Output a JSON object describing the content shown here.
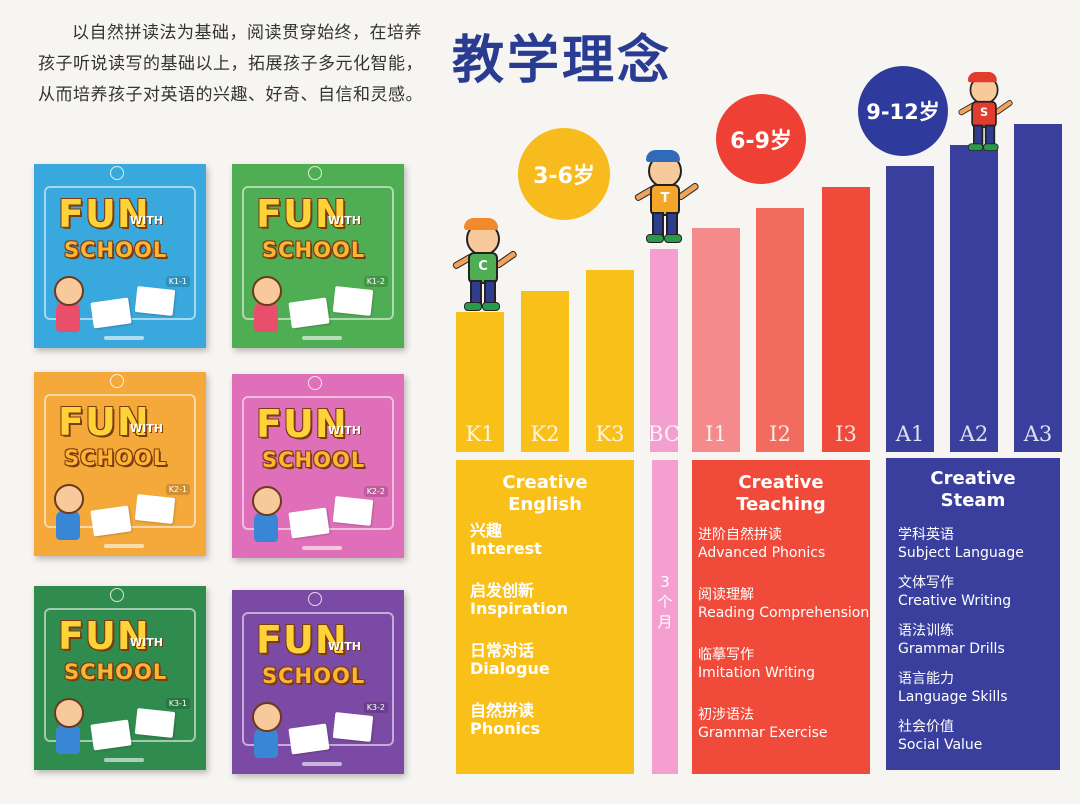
{
  "intro_text": "以自然拼读法为基础，阅读贯穿始终，在培养孩子听说读写的基础以上，拓展孩子多元化智能，从而培养孩子对英语的兴趣、好奇、自信和灵感。",
  "heading": "教学理念",
  "books": [
    {
      "fun": "FUN",
      "with": "WITH",
      "school": "SCHOOL",
      "level": "K1-1",
      "color": "#39a8dc"
    },
    {
      "fun": "FUN",
      "with": "WITH",
      "school": "SCHOOL",
      "level": "K1-2",
      "color": "#4fae53"
    },
    {
      "fun": "FUN",
      "with": "WITH",
      "school": "SCHOOL",
      "level": "K2-1",
      "color": "#f4a93a"
    },
    {
      "fun": "FUN",
      "with": "WITH",
      "school": "SCHOOL",
      "level": "K2-2",
      "color": "#df6fb8"
    },
    {
      "fun": "FUN",
      "with": "WITH",
      "school": "SCHOOL",
      "level": "K3-1",
      "color": "#2f8b4e"
    },
    {
      "fun": "FUN",
      "with": "WITH",
      "school": "SCHOOL",
      "level": "K3-2",
      "color": "#7b4aa4"
    }
  ],
  "ages": [
    {
      "label": "3-6岁",
      "color": "#f8bb1d"
    },
    {
      "label": "6-9岁",
      "color": "#ee4034"
    },
    {
      "label": "9-12岁",
      "color": "#2e3a9c"
    }
  ],
  "levels": [
    {
      "label": "K1",
      "value": 1,
      "color": "#f9c01a"
    },
    {
      "label": "K2",
      "value": 2,
      "color": "#f9c01a"
    },
    {
      "label": "K3",
      "value": 3,
      "color": "#f9c01a"
    },
    {
      "label": "BC",
      "value": 4,
      "color": "#f39fd0"
    },
    {
      "label": "I1",
      "value": 5,
      "color": "#f58a8c"
    },
    {
      "label": "I2",
      "value": 6,
      "color": "#f26b5e"
    },
    {
      "label": "I3",
      "value": 7,
      "color": "#ef4a3a"
    },
    {
      "label": "A1",
      "value": 8,
      "color": "#3a3f9e"
    },
    {
      "label": "A2",
      "value": 9,
      "color": "#3a3f9e"
    },
    {
      "label": "A3",
      "value": 10,
      "color": "#3a3f9e"
    }
  ],
  "bc_text": "3个月",
  "panels": [
    {
      "title": "Creative English",
      "color": "#f9c01a",
      "items": [
        {
          "zh": "兴趣",
          "en": "Interest"
        },
        {
          "zh": "启发创新",
          "en": "Inspiration"
        },
        {
          "zh": "日常对话",
          "en": "Dialogue"
        },
        {
          "zh": "自然拼读",
          "en": "Phonics"
        }
      ]
    },
    {
      "title": "Creative Teaching",
      "color": "#ef4a3a",
      "items": [
        {
          "zh": "进阶自然拼读",
          "en": "Advanced Phonics"
        },
        {
          "zh": "阅读理解",
          "en": "Reading Comprehension"
        },
        {
          "zh": "临摹写作",
          "en": "Imitation Writing"
        },
        {
          "zh": "初涉语法",
          "en": "Grammar Exercise"
        }
      ]
    },
    {
      "title": "Creative Steam",
      "color": "#3a3f9e",
      "items": [
        {
          "zh": "学科英语",
          "en": "Subject Language"
        },
        {
          "zh": "文体写作",
          "en": "Creative Writing"
        },
        {
          "zh": "语法训练",
          "en": "Grammar Drills"
        },
        {
          "zh": "语言能力",
          "en": "Language Skills"
        },
        {
          "zh": "社会价值",
          "en": "Social Value"
        }
      ]
    }
  ],
  "characters": [
    {
      "letter": "C",
      "shirt": "#4fae53",
      "hair": "#f08a2a"
    },
    {
      "letter": "T",
      "shirt": "#f4a62a",
      "hair": "#2f6bb8"
    },
    {
      "letter": "S",
      "shirt": "#e23c2f",
      "hair": "#e23c2f"
    }
  ]
}
